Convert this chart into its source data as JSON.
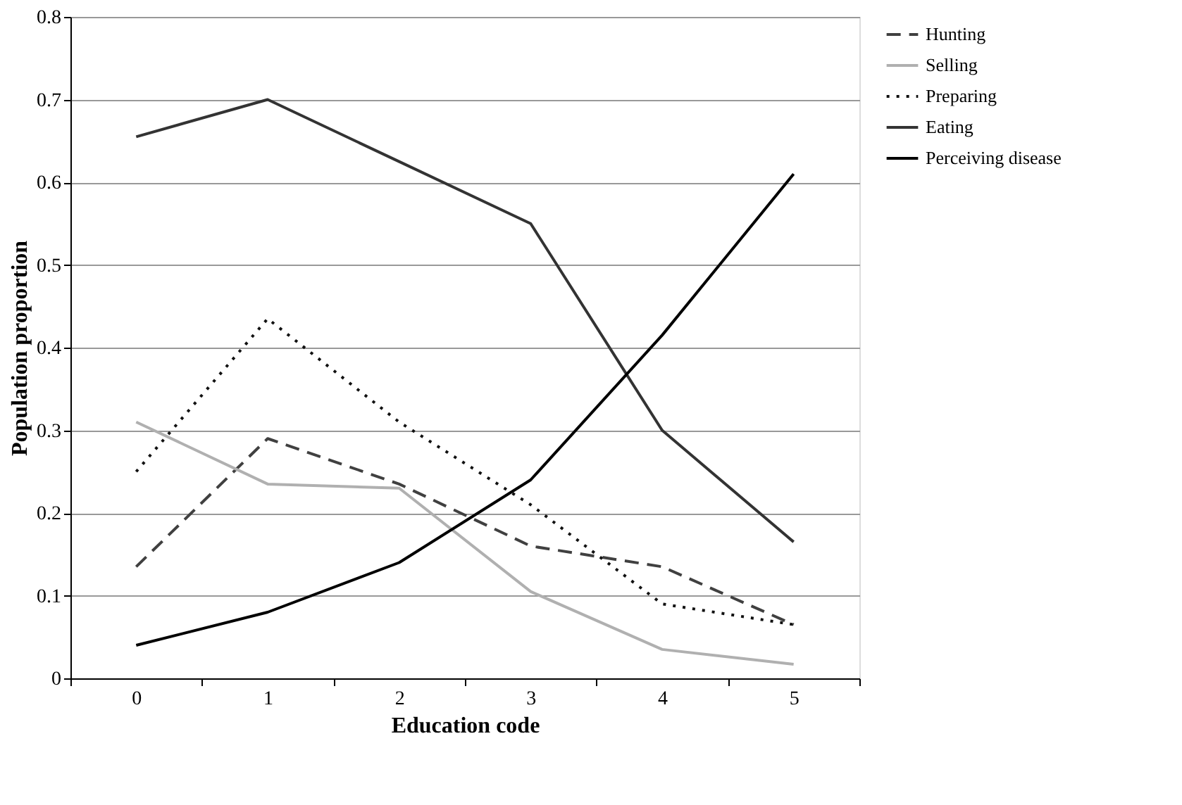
{
  "chart_data": {
    "type": "line",
    "xlabel": "Education code",
    "ylabel": "Population proportion",
    "categories": [
      "0",
      "1",
      "2",
      "3",
      "4",
      "5"
    ],
    "ylim": [
      0,
      0.8
    ],
    "yticks": [
      0,
      0.1,
      0.2,
      0.3,
      0.4,
      0.5,
      0.6,
      0.7,
      0.8
    ],
    "grid": "y",
    "legend": "right",
    "marker": "none",
    "series": [
      {
        "name": "Hunting",
        "color": "#404040",
        "line_style": "dashed",
        "values": [
          0.135,
          0.29,
          0.235,
          0.16,
          0.135,
          0.065
        ]
      },
      {
        "name": "Selling",
        "color": "#b0b0b0",
        "line_style": "solid",
        "values": [
          0.31,
          0.235,
          0.23,
          0.105,
          0.035,
          0.017
        ]
      },
      {
        "name": "Preparing",
        "color": "#111111",
        "line_style": "dotted",
        "values": [
          0.25,
          0.435,
          0.31,
          0.21,
          0.09,
          0.065
        ]
      },
      {
        "name": "Eating",
        "color": "#333333",
        "line_style": "solid",
        "values": [
          0.655,
          0.7,
          0.625,
          0.55,
          0.3,
          0.165
        ]
      },
      {
        "name": "Perceiving disease",
        "color": "#000000",
        "line_style": "solid",
        "values": [
          0.04,
          0.08,
          0.14,
          0.24,
          0.415,
          0.61
        ]
      }
    ]
  }
}
